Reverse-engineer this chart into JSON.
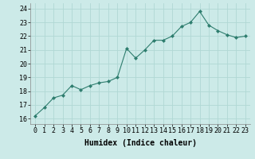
{
  "x": [
    0,
    1,
    2,
    3,
    4,
    5,
    6,
    7,
    8,
    9,
    10,
    11,
    12,
    13,
    14,
    15,
    16,
    17,
    18,
    19,
    20,
    21,
    22,
    23
  ],
  "y": [
    16.2,
    16.8,
    17.5,
    17.7,
    18.4,
    18.1,
    18.4,
    18.6,
    18.7,
    19.0,
    21.1,
    20.4,
    21.0,
    21.7,
    21.7,
    22.0,
    22.7,
    23.0,
    23.8,
    22.8,
    22.4,
    22.1,
    21.9,
    22.0
  ],
  "line_color": "#2e7d6e",
  "marker": "D",
  "marker_size": 2,
  "bg_color": "#cceae8",
  "grid_color": "#b0d8d4",
  "ylabel_vals": [
    16,
    17,
    18,
    19,
    20,
    21,
    22,
    23,
    24
  ],
  "xlabel": "Humidex (Indice chaleur)",
  "xlim": [
    -0.5,
    23.5
  ],
  "ylim": [
    15.6,
    24.4
  ],
  "xlabel_fontsize": 7,
  "tick_fontsize": 6
}
